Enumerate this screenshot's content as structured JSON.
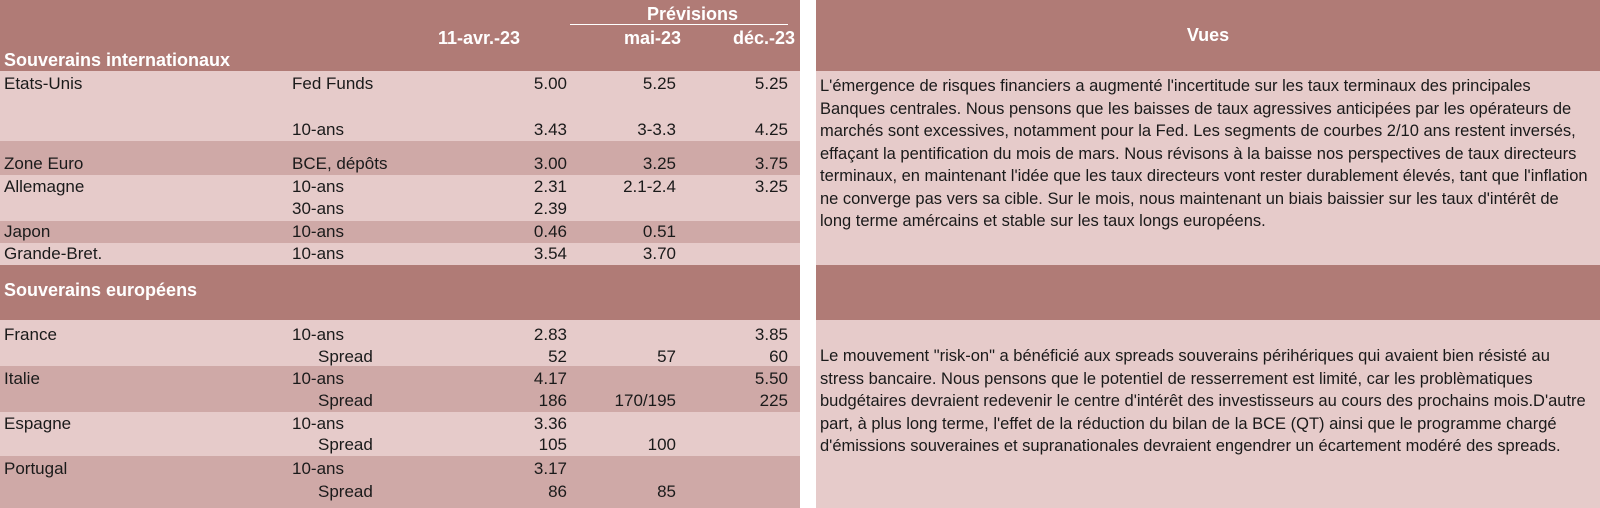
{
  "table": {
    "header": {
      "forecasts_label": "Prévisions",
      "col_current": "11-avr.-23",
      "col_may": "mai-23",
      "col_dec": "déc.-23",
      "section_intl": "Souverains internationaux"
    },
    "international": [
      {
        "country": "Etats-Unis",
        "tenor": "Fed Funds",
        "current": "5.00",
        "may": "5.25",
        "dec": "5.25"
      },
      {
        "country": "",
        "tenor": "10-ans",
        "current": "3.43",
        "may": "3-3.3",
        "dec": "4.25"
      },
      {
        "country": "Zone Euro",
        "tenor": "BCE, dépôts",
        "current": "3.00",
        "may": "3.25",
        "dec": "3.75"
      },
      {
        "country": "Allemagne",
        "tenor": "10-ans",
        "current": "2.31",
        "may": "2.1-2.4",
        "dec": "3.25"
      },
      {
        "country": "",
        "tenor": "30-ans",
        "current": "2.39",
        "may": "",
        "dec": ""
      },
      {
        "country": "Japon",
        "tenor": "10-ans",
        "current": "0.46",
        "may": "0.51",
        "dec": ""
      },
      {
        "country": "Grande-Bret.",
        "tenor": "10-ans",
        "current": "3.54",
        "may": "3.70",
        "dec": ""
      }
    ],
    "section_euro": "Souverains européens",
    "european": [
      {
        "country": "France",
        "tenor": "10-ans",
        "current": "2.83",
        "may": "",
        "dec": "3.85"
      },
      {
        "country": "",
        "tenor": "Spread",
        "current": "52",
        "may": "57",
        "dec": "60"
      },
      {
        "country": "Italie",
        "tenor": "10-ans",
        "current": "4.17",
        "may": "",
        "dec": "5.50"
      },
      {
        "country": "",
        "tenor": "Spread",
        "current": "186",
        "may": "170/195",
        "dec": "225"
      },
      {
        "country": "Espagne",
        "tenor": "10-ans",
        "current": "3.36",
        "may": "",
        "dec": ""
      },
      {
        "country": "",
        "tenor": "Spread",
        "current": "105",
        "may": "100",
        "dec": ""
      },
      {
        "country": "Portugal",
        "tenor": "10-ans",
        "current": "3.17",
        "may": "",
        "dec": ""
      },
      {
        "country": "",
        "tenor": "Spread",
        "current": "86",
        "may": "85",
        "dec": ""
      }
    ]
  },
  "vues": {
    "title": "Vues",
    "paragraph_intl": "L'émergence de risques financiers a augmenté l'incertitude sur les taux terminaux des principales Banques centrales. Nous pensons que les baisses de taux agressives anticipées par les opérateurs de marchés sont excessives, notamment pour la Fed. Les segments de courbes 2/10 ans restent inversés, effaçant la pentification du mois de mars. Nous révisons à la baisse nos perspectives de taux directeurs terminaux, en maintenant l'idée que les taux directeurs vont rester durablement élevés, tant que l'inflation ne converge pas vers sa cible. Sur le mois, nous maintenant un biais baissier sur les taux d'intérêt de long terme amércains et stable sur les taux longs européens.",
    "paragraph_euro": "Le mouvement \"risk-on\" a bénéficié aux spreads souverains périhériques qui avaient bien résisté au stress bancaire. Nous pensons que le potentiel de resserrement est limité, car les problèmatiques budgétaires devraient redevenir le centre d'intérêt des investisseurs au cours des prochains mois.D'autre part, à plus long terme, l'effet de la réduction du bilan de la BCE (QT) ainsi que le programme chargé d'émissions souveraines et supranationales devraient engendrer un écartement modéré des spreads."
  },
  "colors": {
    "header": "#b07b76",
    "row_dark": "#cfa9a7",
    "row_light": "#e6cbca"
  }
}
